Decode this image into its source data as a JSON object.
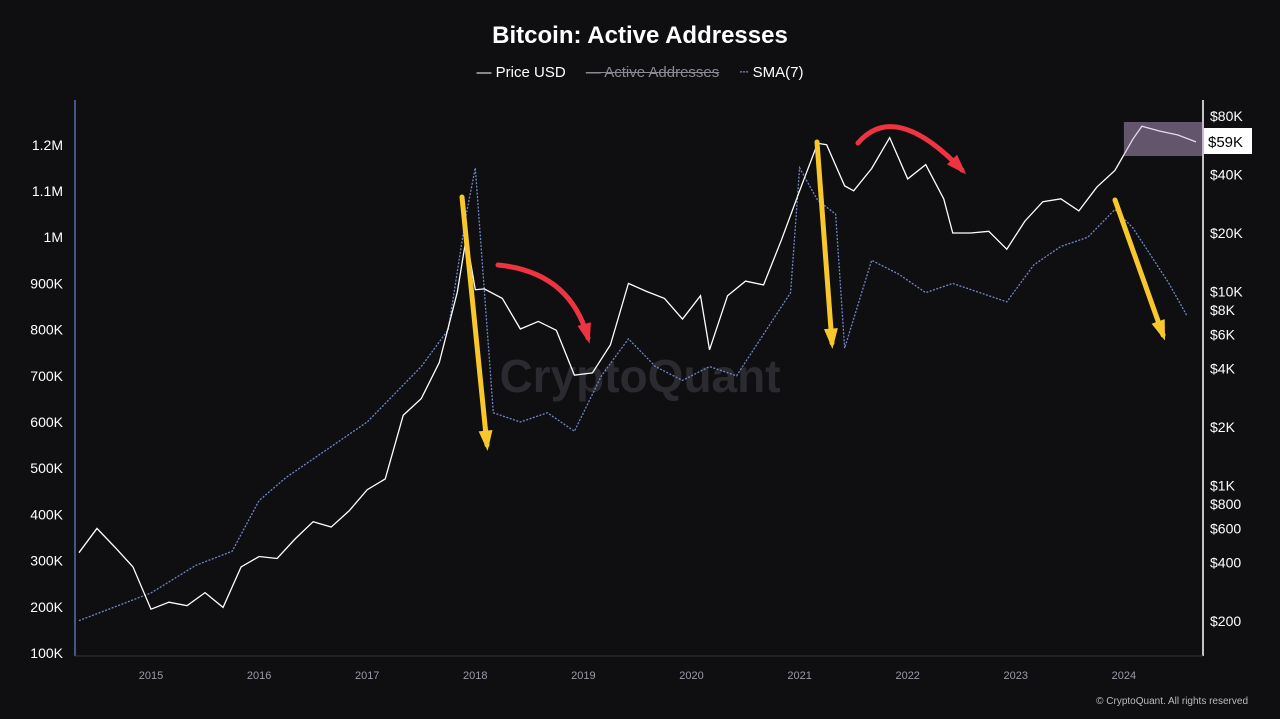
{
  "chart_data": {
    "type": "line",
    "title": "Bitcoin: Active Addresses",
    "legend": [
      {
        "name": "Price USD",
        "color": "#ffffff",
        "visible": true
      },
      {
        "name": "Active Addresses",
        "color": "#8a8a92",
        "visible": false
      },
      {
        "name": "SMA(7)",
        "color": "#6f86c4",
        "visible": true
      }
    ],
    "legend_placement": "top-center",
    "watermark": "CryptoQuant",
    "copyright": "© CryptoQuant. All rights reserved",
    "x_ticks": [
      "2015",
      "2016",
      "2017",
      "2018",
      "2019",
      "2020",
      "2021",
      "2022",
      "2023",
      "2024"
    ],
    "xlim": [
      "2014-05",
      "2024-09"
    ],
    "y_left": {
      "ticks": [
        "100K",
        "200K",
        "300K",
        "400K",
        "500K",
        "600K",
        "700K",
        "800K",
        "900K",
        "1M",
        "1.1M",
        "1.2M"
      ],
      "range": [
        100000,
        1200000
      ],
      "scale": "linear"
    },
    "y_right": {
      "ticks": [
        "$200",
        "$400",
        "$600",
        "$800",
        "$1K",
        "$2K",
        "$4K",
        "$6K",
        "$8K",
        "$10K",
        "$20K",
        "$40K",
        "$80K"
      ],
      "range": [
        200,
        80000
      ],
      "scale": "log"
    },
    "current_price_label": "$59K",
    "grid": false,
    "series": [
      {
        "name": "Price USD",
        "axis": "right",
        "x": [
          "2014-05",
          "2014-07",
          "2014-09",
          "2014-11",
          "2015-01",
          "2015-03",
          "2015-05",
          "2015-07",
          "2015-09",
          "2015-11",
          "2016-01",
          "2016-03",
          "2016-05",
          "2016-07",
          "2016-09",
          "2016-11",
          "2017-01",
          "2017-03",
          "2017-05",
          "2017-07",
          "2017-09",
          "2017-11",
          "2017-12",
          "2018-01",
          "2018-02",
          "2018-04",
          "2018-06",
          "2018-08",
          "2018-10",
          "2018-12",
          "2019-02",
          "2019-04",
          "2019-06",
          "2019-08",
          "2019-10",
          "2019-12",
          "2020-02",
          "2020-03",
          "2020-05",
          "2020-07",
          "2020-09",
          "2020-11",
          "2021-01",
          "2021-03",
          "2021-04",
          "2021-06",
          "2021-07",
          "2021-09",
          "2021-11",
          "2022-01",
          "2022-03",
          "2022-05",
          "2022-06",
          "2022-08",
          "2022-10",
          "2022-12",
          "2023-02",
          "2023-04",
          "2023-06",
          "2023-08",
          "2023-10",
          "2023-12",
          "2024-02",
          "2024-03",
          "2024-05",
          "2024-07",
          "2024-09"
        ],
        "values": [
          450,
          600,
          480,
          380,
          230,
          250,
          240,
          280,
          235,
          380,
          430,
          420,
          530,
          650,
          610,
          740,
          950,
          1080,
          2300,
          2800,
          4300,
          9900,
          19000,
          10200,
          10300,
          9200,
          6400,
          7000,
          6300,
          3700,
          3800,
          5300,
          11000,
          10000,
          9200,
          7200,
          9500,
          5000,
          9500,
          11300,
          10800,
          18500,
          33000,
          58000,
          57000,
          35000,
          33000,
          43000,
          62000,
          38000,
          45000,
          30000,
          20000,
          20000,
          20400,
          16500,
          23000,
          29000,
          30000,
          26000,
          34500,
          42000,
          61000,
          71000,
          67000,
          64000,
          59000
        ]
      },
      {
        "name": "SMA(7)",
        "axis": "left",
        "x": [
          "2014-05",
          "2014-09",
          "2015-01",
          "2015-06",
          "2015-10",
          "2016-01",
          "2016-04",
          "2016-07",
          "2016-10",
          "2017-01",
          "2017-04",
          "2017-07",
          "2017-10",
          "2017-12",
          "2018-01",
          "2018-03",
          "2018-06",
          "2018-09",
          "2018-12",
          "2019-03",
          "2019-06",
          "2019-09",
          "2019-12",
          "2020-03",
          "2020-06",
          "2020-09",
          "2020-12",
          "2021-01",
          "2021-03",
          "2021-05",
          "2021-06",
          "2021-09",
          "2021-12",
          "2022-03",
          "2022-06",
          "2022-09",
          "2022-12",
          "2023-03",
          "2023-06",
          "2023-09",
          "2023-12",
          "2024-02",
          "2024-04",
          "2024-06",
          "2024-08"
        ],
        "values": [
          170000,
          200000,
          230000,
          290000,
          320000,
          430000,
          480000,
          520000,
          560000,
          600000,
          660000,
          720000,
          800000,
          1050000,
          1150000,
          620000,
          600000,
          620000,
          580000,
          700000,
          780000,
          720000,
          690000,
          720000,
          700000,
          790000,
          880000,
          1150000,
          1080000,
          1050000,
          760000,
          950000,
          920000,
          880000,
          900000,
          880000,
          860000,
          940000,
          980000,
          1000000,
          1060000,
          1020000,
          960000,
          900000,
          830000
        ]
      }
    ]
  }
}
